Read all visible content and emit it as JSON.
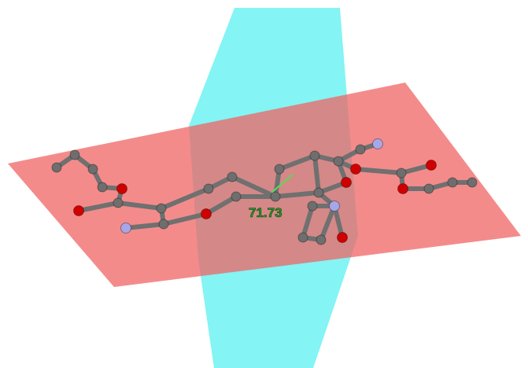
{
  "angle_label": "71.73"
}
